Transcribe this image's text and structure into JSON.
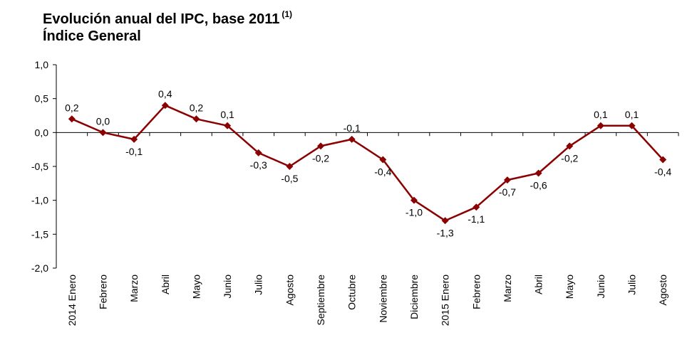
{
  "header": {
    "title_line1": "Evolución anual del IPC, base 2011",
    "title_sup": "(1)",
    "title_line2": "Índice General"
  },
  "chart_data": {
    "type": "line",
    "title": "Evolución anual del IPC, base 2011 (1) Índice General",
    "categories": [
      "2014 Enero",
      "Febrero",
      "Marzo",
      "Abril",
      "Mayo",
      "Junio",
      "Julio",
      "Agosto",
      "Septiembre",
      "Octubre",
      "Noviembre",
      "Diciembre",
      "2015 Enero",
      "Febrero",
      "Marzo",
      "Abril",
      "Mayo",
      "Junio",
      "Julio",
      "Agosto"
    ],
    "series": [
      {
        "values": [
          0.2,
          0.0,
          -0.1,
          0.4,
          0.2,
          0.1,
          -0.3,
          -0.5,
          -0.2,
          -0.1,
          -0.4,
          -1.0,
          -1.3,
          -1.1,
          -0.7,
          -0.6,
          -0.2,
          0.1,
          0.1,
          -0.4
        ],
        "labels": [
          "0,2",
          "0,0",
          "-0,1",
          "0,4",
          "0,2",
          "0,1",
          "-0,3",
          "-0,5",
          "-0,2",
          "-0,1",
          "-0,4",
          "-1,0",
          "-1,3",
          "-1,1",
          "-0,7",
          "-0,6",
          "-0,2",
          "0,1",
          "0,1",
          "-0,4"
        ],
        "color": "#8B0000"
      }
    ],
    "ylim": [
      -2.0,
      1.0
    ],
    "yticks": [
      1.0,
      0.5,
      0.0,
      -0.5,
      -1.0,
      -1.5,
      -2.0
    ],
    "ytick_labels": [
      "1,0",
      "0,5",
      "0,0",
      "-0,5",
      "-1,0",
      "-1,5",
      "-2,0"
    ],
    "xlabel": "",
    "ylabel": "",
    "grid": false,
    "legend": "none",
    "marker": "diamond"
  }
}
